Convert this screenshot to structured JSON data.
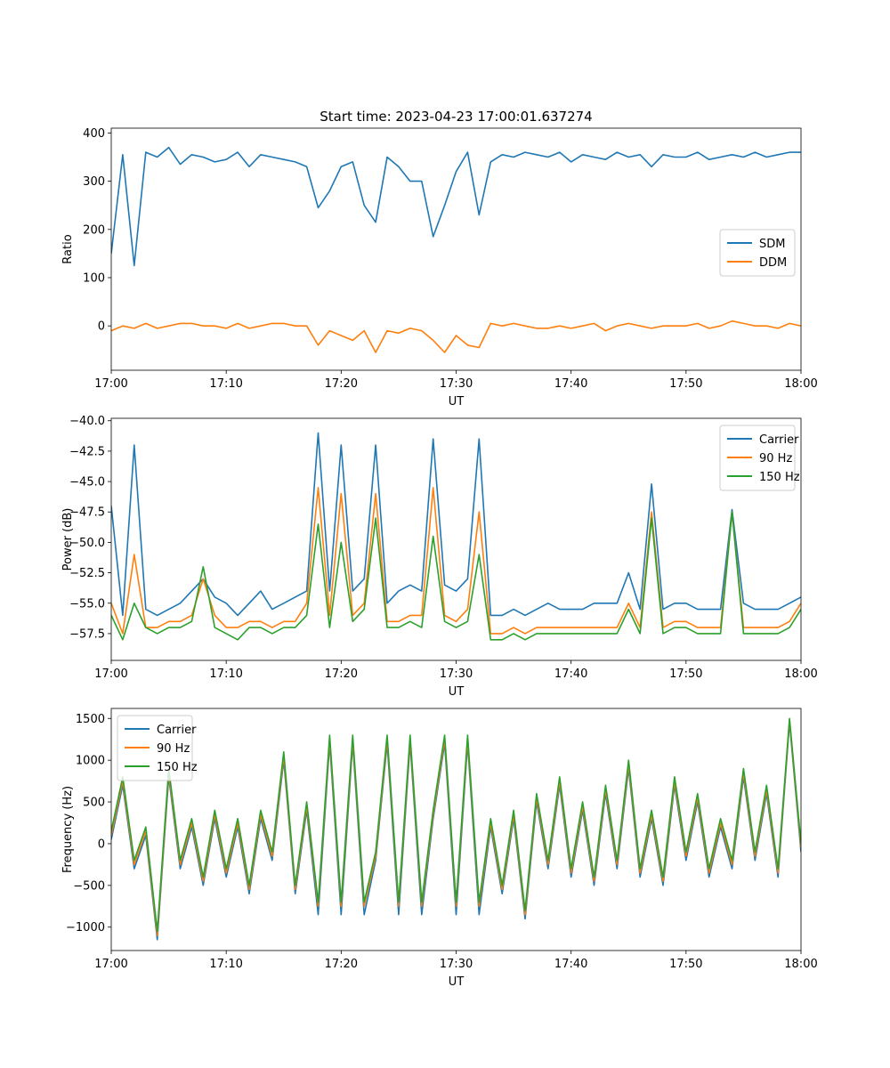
{
  "figure": {
    "title": "Start time: 2023-04-23 17:00:01.637274"
  },
  "chart_data": [
    {
      "type": "line",
      "xlabel": "UT",
      "ylabel": "Ratio",
      "xlim": [
        "17:00",
        "18:00"
      ],
      "ylim": [
        -92,
        410
      ],
      "xticks": [
        "17:00",
        "17:10",
        "17:20",
        "17:30",
        "17:40",
        "17:50",
        "18:00"
      ],
      "yticks": [
        0,
        100,
        200,
        300,
        400
      ],
      "ytick_labels": [
        "0",
        "100",
        "200",
        "300",
        "400"
      ],
      "grid": false,
      "legend": "center-right",
      "x": [
        "17:00",
        "17:01",
        "17:02",
        "17:03",
        "17:04",
        "17:05",
        "17:06",
        "17:07",
        "17:08",
        "17:09",
        "17:10",
        "17:11",
        "17:12",
        "17:13",
        "17:14",
        "17:15",
        "17:16",
        "17:17",
        "17:18",
        "17:19",
        "17:20",
        "17:21",
        "17:22",
        "17:23",
        "17:24",
        "17:25",
        "17:26",
        "17:27",
        "17:28",
        "17:29",
        "17:30",
        "17:31",
        "17:32",
        "17:33",
        "17:34",
        "17:35",
        "17:36",
        "17:37",
        "17:38",
        "17:39",
        "17:40",
        "17:41",
        "17:42",
        "17:43",
        "17:44",
        "17:45",
        "17:46",
        "17:47",
        "17:48",
        "17:49",
        "17:50",
        "17:51",
        "17:52",
        "17:53",
        "17:54",
        "17:55",
        "17:56",
        "17:57",
        "17:58",
        "17:59",
        "18:00"
      ],
      "series": [
        {
          "name": "SDM",
          "color": "#1f77b4",
          "values": [
            150,
            355,
            125,
            360,
            350,
            370,
            335,
            355,
            350,
            340,
            345,
            360,
            330,
            355,
            350,
            345,
            340,
            330,
            245,
            280,
            330,
            340,
            250,
            215,
            350,
            330,
            300,
            300,
            185,
            250,
            320,
            360,
            230,
            340,
            355,
            350,
            360,
            355,
            350,
            360,
            340,
            355,
            350,
            345,
            360,
            350,
            355,
            330,
            355,
            350,
            350,
            360,
            345,
            350,
            355,
            350,
            360,
            350,
            355,
            360,
            360
          ]
        },
        {
          "name": "DDM",
          "color": "#ff7f0e",
          "values": [
            -10,
            0,
            -5,
            5,
            -5,
            0,
            5,
            5,
            0,
            0,
            -5,
            5,
            -5,
            0,
            5,
            5,
            0,
            0,
            -40,
            -10,
            -20,
            -30,
            -10,
            -55,
            -10,
            -15,
            -5,
            -10,
            -30,
            -55,
            -20,
            -40,
            -45,
            5,
            0,
            5,
            0,
            -5,
            -5,
            0,
            -5,
            0,
            5,
            -10,
            0,
            5,
            0,
            -5,
            0,
            0,
            0,
            5,
            -5,
            0,
            10,
            5,
            0,
            0,
            -5,
            5,
            0
          ]
        }
      ]
    },
    {
      "type": "line",
      "xlabel": "UT",
      "ylabel": "Power (dB)",
      "xlim": [
        "17:00",
        "18:00"
      ],
      "ylim": [
        -59.7,
        -39.8
      ],
      "xticks": [
        "17:00",
        "17:10",
        "17:20",
        "17:30",
        "17:40",
        "17:50",
        "18:00"
      ],
      "yticks": [
        -57.5,
        -55.0,
        -52.5,
        -50.0,
        -47.5,
        -45.0,
        -42.5,
        -40.0
      ],
      "ytick_labels": [
        "−57.5",
        "−55.0",
        "−52.5",
        "−50.0",
        "−47.5",
        "−45.0",
        "−42.5",
        "−40.0"
      ],
      "grid": false,
      "legend": "top-right",
      "x": [
        "17:00",
        "17:01",
        "17:02",
        "17:03",
        "17:04",
        "17:05",
        "17:06",
        "17:07",
        "17:08",
        "17:09",
        "17:10",
        "17:11",
        "17:12",
        "17:13",
        "17:14",
        "17:15",
        "17:16",
        "17:17",
        "17:18",
        "17:19",
        "17:20",
        "17:21",
        "17:22",
        "17:23",
        "17:24",
        "17:25",
        "17:26",
        "17:27",
        "17:28",
        "17:29",
        "17:30",
        "17:31",
        "17:32",
        "17:33",
        "17:34",
        "17:35",
        "17:36",
        "17:37",
        "17:38",
        "17:39",
        "17:40",
        "17:41",
        "17:42",
        "17:43",
        "17:44",
        "17:45",
        "17:46",
        "17:47",
        "17:48",
        "17:49",
        "17:50",
        "17:51",
        "17:52",
        "17:53",
        "17:54",
        "17:55",
        "17:56",
        "17:57",
        "17:58",
        "17:59",
        "18:00"
      ],
      "series": [
        {
          "name": "Carrier",
          "color": "#1f77b4",
          "values": [
            -47,
            -56,
            -42,
            -55.5,
            -56,
            -55.5,
            -55,
            -54,
            -53,
            -54.5,
            -55,
            -56,
            -55,
            -54,
            -55.5,
            -55,
            -54.5,
            -54,
            -41,
            -54,
            -42,
            -54,
            -53,
            -42,
            -55,
            -54,
            -53.5,
            -54,
            -41.5,
            -53.5,
            -54,
            -53,
            -41.5,
            -56,
            -56,
            -55.5,
            -56,
            -55.5,
            -55,
            -55.5,
            -55.5,
            -55.5,
            -55,
            -55,
            -55,
            -52.5,
            -55.5,
            -45.2,
            -55.5,
            -55,
            -55,
            -55.5,
            -55.5,
            -55.5,
            -47.3,
            -55,
            -55.5,
            -55.5,
            -55.5,
            -55,
            -54.5
          ]
        },
        {
          "name": "90 Hz",
          "color": "#ff7f0e",
          "values": [
            -55,
            -57.5,
            -51,
            -57,
            -57,
            -56.5,
            -56.5,
            -56,
            -53,
            -56,
            -57,
            -57,
            -56.5,
            -56.5,
            -57,
            -56.5,
            -56.5,
            -55,
            -45.5,
            -56,
            -46,
            -56,
            -55,
            -46,
            -56.5,
            -56.5,
            -56,
            -56,
            -45.5,
            -56,
            -56.5,
            -55.5,
            -47.5,
            -57.5,
            -57.5,
            -57,
            -57.5,
            -57,
            -57,
            -57,
            -57,
            -57,
            -57,
            -57,
            -57,
            -55,
            -57,
            -47.5,
            -57,
            -56.5,
            -56.5,
            -57,
            -57,
            -57,
            -47.5,
            -57,
            -57,
            -57,
            -57,
            -56.5,
            -55
          ]
        },
        {
          "name": "150 Hz",
          "color": "#2ca02c",
          "values": [
            -56,
            -58,
            -55,
            -57,
            -57.5,
            -57,
            -57,
            -56.5,
            -52,
            -57,
            -57.5,
            -58,
            -57,
            -57,
            -57.5,
            -57,
            -57,
            -56,
            -48.5,
            -57,
            -50,
            -56.5,
            -55.5,
            -48,
            -57,
            -57,
            -56.5,
            -57,
            -49.5,
            -56.5,
            -57,
            -56.5,
            -51,
            -58,
            -58,
            -57.5,
            -58,
            -57.5,
            -57.5,
            -57.5,
            -57.5,
            -57.5,
            -57.5,
            -57.5,
            -57.5,
            -55.5,
            -57.5,
            -48,
            -57.5,
            -57,
            -57,
            -57.5,
            -57.5,
            -57.5,
            -47.5,
            -57.5,
            -57.5,
            -57.5,
            -57.5,
            -57,
            -55.5
          ]
        }
      ]
    },
    {
      "type": "line",
      "xlabel": "UT",
      "ylabel": "Frequency (Hz)",
      "xlim": [
        "17:00",
        "18:00"
      ],
      "ylim": [
        -1280,
        1620
      ],
      "xticks": [
        "17:00",
        "17:10",
        "17:20",
        "17:30",
        "17:40",
        "17:50",
        "18:00"
      ],
      "yticks": [
        -1000,
        -500,
        0,
        500,
        1000,
        1500
      ],
      "ytick_labels": [
        "−1000",
        "−500",
        "0",
        "500",
        "1000",
        "1500"
      ],
      "grid": false,
      "legend": "top-left",
      "x": [
        "17:00",
        "17:01",
        "17:02",
        "17:03",
        "17:04",
        "17:05",
        "17:06",
        "17:07",
        "17:08",
        "17:09",
        "17:10",
        "17:11",
        "17:12",
        "17:13",
        "17:14",
        "17:15",
        "17:16",
        "17:17",
        "17:18",
        "17:19",
        "17:20",
        "17:21",
        "17:22",
        "17:23",
        "17:24",
        "17:25",
        "17:26",
        "17:27",
        "17:28",
        "17:29",
        "17:30",
        "17:31",
        "17:32",
        "17:33",
        "17:34",
        "17:35",
        "17:36",
        "17:37",
        "17:38",
        "17:39",
        "17:40",
        "17:41",
        "17:42",
        "17:43",
        "17:44",
        "17:45",
        "17:46",
        "17:47",
        "17:48",
        "17:49",
        "17:50",
        "17:51",
        "17:52",
        "17:53",
        "17:54",
        "17:55",
        "17:56",
        "17:57",
        "17:58",
        "17:59",
        "18:00"
      ],
      "series": [
        {
          "name": "Carrier",
          "color": "#1f77b4",
          "values": [
            50,
            700,
            -300,
            100,
            -1150,
            800,
            -300,
            200,
            -500,
            300,
            -400,
            200,
            -600,
            300,
            -200,
            1000,
            -600,
            400,
            -850,
            1200,
            -850,
            1200,
            -850,
            -200,
            1200,
            -850,
            1200,
            -850,
            300,
            1200,
            -850,
            1200,
            -850,
            200,
            -600,
            300,
            -900,
            500,
            -300,
            700,
            -400,
            400,
            -500,
            600,
            -300,
            900,
            -400,
            300,
            -500,
            700,
            -200,
            500,
            -400,
            200,
            -300,
            800,
            -200,
            600,
            -400,
            1450,
            -100
          ]
        },
        {
          "name": "90 Hz",
          "color": "#ff7f0e",
          "values": [
            100,
            750,
            -250,
            150,
            -1100,
            850,
            -250,
            250,
            -450,
            350,
            -350,
            250,
            -550,
            350,
            -150,
            1050,
            -550,
            450,
            -750,
            1250,
            -750,
            1250,
            -750,
            -150,
            1250,
            -750,
            1250,
            -750,
            350,
            1250,
            -750,
            1250,
            -750,
            250,
            -550,
            350,
            -850,
            550,
            -250,
            750,
            -350,
            450,
            -450,
            650,
            -250,
            950,
            -350,
            350,
            -450,
            750,
            -150,
            550,
            -350,
            250,
            -250,
            850,
            -150,
            650,
            -350,
            1480,
            -50
          ]
        },
        {
          "name": "150 Hz",
          "color": "#2ca02c",
          "values": [
            150,
            800,
            -200,
            200,
            -1050,
            900,
            -200,
            300,
            -400,
            400,
            -300,
            300,
            -500,
            400,
            -100,
            1100,
            -500,
            500,
            -700,
            1300,
            -700,
            1300,
            -700,
            -100,
            1300,
            -700,
            1300,
            -700,
            400,
            1300,
            -700,
            1300,
            -700,
            300,
            -500,
            400,
            -800,
            600,
            -200,
            800,
            -300,
            500,
            -400,
            700,
            -200,
            1000,
            -300,
            400,
            -400,
            800,
            -100,
            600,
            -300,
            300,
            -200,
            900,
            -100,
            700,
            -300,
            1500,
            0
          ]
        }
      ]
    }
  ]
}
